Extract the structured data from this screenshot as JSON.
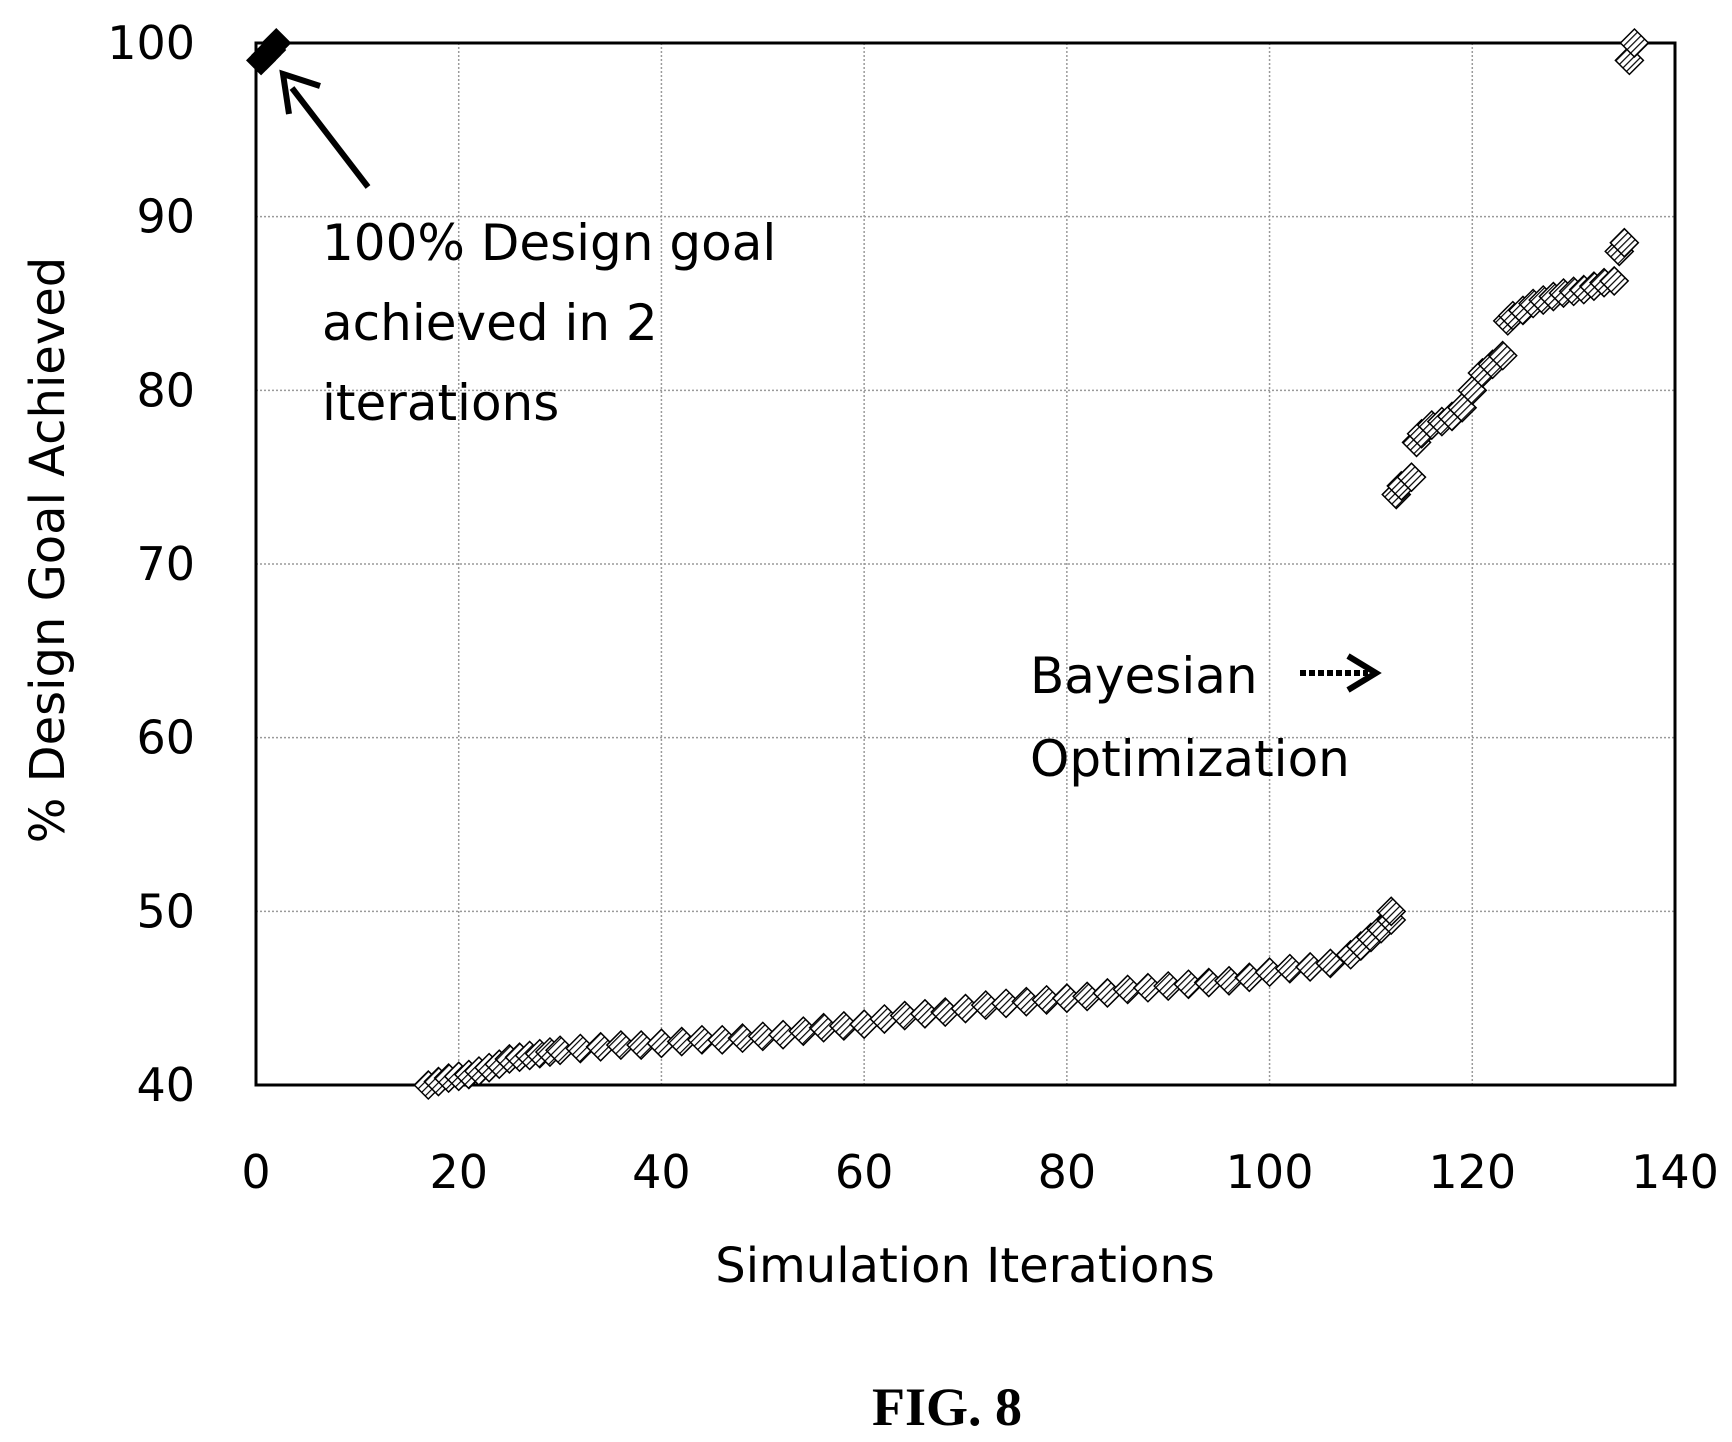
{
  "figure_label": "FIG. 8",
  "annotations": {
    "first": [
      "100% Design goal",
      "achieved in 2",
      "iterations"
    ],
    "second": [
      "Bayesian",
      "Optimization"
    ]
  },
  "colors": {
    "marker_fill": "#ffffff",
    "marker_stroke": "#000000",
    "grid": "#9a9a9a",
    "axis": "#000000"
  },
  "chart_data": {
    "type": "scatter",
    "xlabel": "Simulation Iterations",
    "ylabel": "% Design Goal Achieved",
    "xlim": [
      0,
      140
    ],
    "ylim": [
      40,
      100
    ],
    "xticks": [
      "0",
      "20",
      "40",
      "60",
      "80",
      "100",
      "120",
      "140"
    ],
    "yticks": [
      "40",
      "50",
      "60",
      "70",
      "80",
      "90",
      "100"
    ],
    "grid": true,
    "series": [
      {
        "marker": "hatched-diamond",
        "x": [
          17,
          18,
          19,
          20,
          21,
          22,
          23,
          24,
          25,
          26,
          27,
          28,
          29,
          30,
          32,
          34,
          36,
          38,
          40,
          42,
          44,
          46,
          48,
          50,
          52,
          54,
          56,
          58,
          60,
          62,
          64,
          66,
          68,
          70,
          72,
          74,
          76,
          78,
          80,
          82,
          84,
          86,
          88,
          90,
          92,
          94,
          96,
          98,
          100,
          102,
          104,
          106,
          108,
          109,
          110,
          111,
          112,
          112,
          112.5,
          113,
          114,
          114.5,
          115,
          116,
          117,
          118,
          119,
          120,
          121,
          122,
          123,
          123.5,
          124,
          125,
          126,
          127,
          128,
          129,
          130,
          131,
          132,
          133,
          134,
          134.5,
          135,
          135.5,
          136
        ],
        "y": [
          40.0,
          40.2,
          40.4,
          40.5,
          40.6,
          40.8,
          41.0,
          41.2,
          41.5,
          41.6,
          41.7,
          41.8,
          41.9,
          42.0,
          42.1,
          42.2,
          42.3,
          42.3,
          42.4,
          42.5,
          42.6,
          42.6,
          42.7,
          42.8,
          42.9,
          43.1,
          43.3,
          43.4,
          43.5,
          43.8,
          44.0,
          44.1,
          44.2,
          44.4,
          44.6,
          44.7,
          44.8,
          44.9,
          45.0,
          45.1,
          45.3,
          45.5,
          45.6,
          45.7,
          45.8,
          45.9,
          46.0,
          46.2,
          46.5,
          46.7,
          46.8,
          47.0,
          47.5,
          48.0,
          48.5,
          49.0,
          49.5,
          50.0,
          74.0,
          74.5,
          75.0,
          77.0,
          77.5,
          78.0,
          78.2,
          78.5,
          79.0,
          80.0,
          81.0,
          81.5,
          82.0,
          84.0,
          84.3,
          84.6,
          85.0,
          85.2,
          85.4,
          85.6,
          85.7,
          85.8,
          86.0,
          86.2,
          86.3,
          88.0,
          88.5,
          99.0,
          100.0
        ]
      },
      {
        "marker": "filled-diamond",
        "x": [
          0.5,
          1.0,
          1.5,
          2.0
        ],
        "y": [
          99.0,
          99.3,
          99.6,
          100.0
        ]
      }
    ]
  }
}
